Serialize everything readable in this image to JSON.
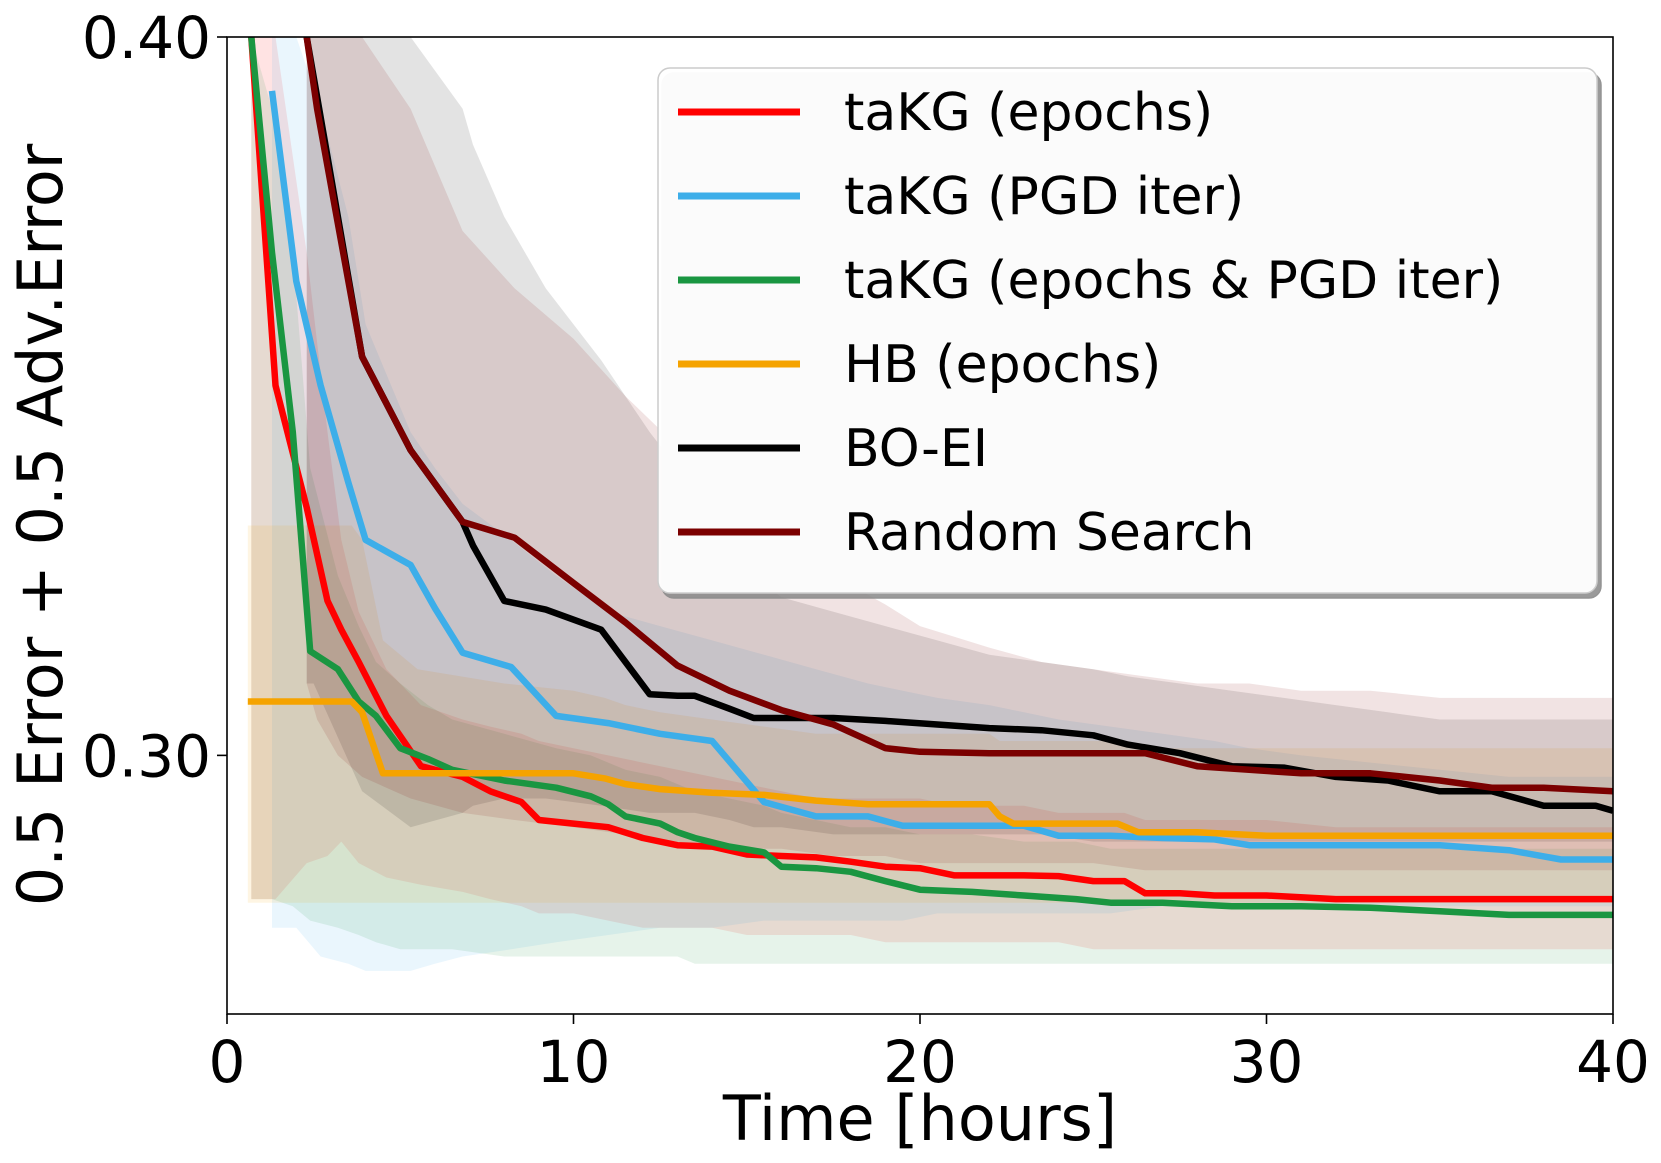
{
  "chart_data": {
    "type": "line",
    "xlabel": "Time [hours]",
    "ylabel": "0.5 Error + 0.5 Adv.Error",
    "xlim": [
      0,
      40
    ],
    "ylim": [
      0.264,
      0.4
    ],
    "xticks": [
      0,
      10,
      20,
      30,
      40
    ],
    "xtick_labels": [
      "0",
      "10",
      "20",
      "30",
      "40"
    ],
    "yticks": [
      0.3,
      0.4
    ],
    "ytick_labels": [
      "0.30",
      "0.40"
    ],
    "legend_position": "top-right",
    "series": [
      {
        "name": "taKG (epochs)",
        "color": "#ff0000",
        "x": [
          0.7,
          1.4,
          2.3,
          2.9,
          3.3,
          3.8,
          4.6,
          5.6,
          6.8,
          7.6,
          8.5,
          9.0,
          10.0,
          11.0,
          12.0,
          13.0,
          14.0,
          15.0,
          16.0,
          17.0,
          18.0,
          19.0,
          20.0,
          21.0,
          22.0,
          23.0,
          24.0,
          25.0,
          25.9,
          26.5,
          27.5,
          28.5,
          30.0,
          32.0,
          35.0,
          38.0,
          40.0
        ],
        "y": [
          0.4,
          0.3515,
          0.3345,
          0.3215,
          0.3175,
          0.313,
          0.3055,
          0.2985,
          0.297,
          0.295,
          0.2935,
          0.291,
          0.2905,
          0.29,
          0.2885,
          0.2875,
          0.2873,
          0.2862,
          0.286,
          0.2858,
          0.2852,
          0.2845,
          0.2843,
          0.2833,
          0.2833,
          0.2833,
          0.2832,
          0.2825,
          0.2825,
          0.2808,
          0.2808,
          0.2805,
          0.2805,
          0.28,
          0.28,
          0.28,
          0.28
        ],
        "lower": [
          0.28,
          0.28,
          0.285,
          0.286,
          0.288,
          0.285,
          0.283,
          0.282,
          0.281,
          0.28,
          0.279,
          0.278,
          0.278,
          0.277,
          0.276,
          0.276,
          0.276,
          0.275,
          0.275,
          0.275,
          0.275,
          0.274,
          0.274,
          0.274,
          0.274,
          0.274,
          0.274,
          0.273,
          0.273,
          0.273,
          0.273,
          0.273,
          0.273,
          0.273,
          0.273,
          0.273,
          0.273
        ],
        "upper": [
          0.4,
          0.4,
          0.37,
          0.345,
          0.33,
          0.32,
          0.312,
          0.307,
          0.305,
          0.304,
          0.303,
          0.302,
          0.301,
          0.3,
          0.299,
          0.298,
          0.297,
          0.296,
          0.295,
          0.294,
          0.294,
          0.294,
          0.294,
          0.293,
          0.293,
          0.293,
          0.292,
          0.292,
          0.292,
          0.291,
          0.291,
          0.291,
          0.291,
          0.29,
          0.29,
          0.29,
          0.29
        ]
      },
      {
        "name": "taKG (PGD iter)",
        "color": "#3daee9",
        "x": [
          1.3,
          2.0,
          2.7,
          3.5,
          4.0,
          5.3,
          6.0,
          6.8,
          8.2,
          9.5,
          11.0,
          12.5,
          14.0,
          15.5,
          17.0,
          18.5,
          19.5,
          20.5,
          22.0,
          23.0,
          24.0,
          25.5,
          27.0,
          28.5,
          29.5,
          31.0,
          33.0,
          35.0,
          37.0,
          38.5,
          40.0
        ],
        "y": [
          0.3925,
          0.366,
          0.3515,
          0.338,
          0.33,
          0.3265,
          0.3205,
          0.3143,
          0.3123,
          0.3055,
          0.3045,
          0.303,
          0.302,
          0.2935,
          0.2915,
          0.2915,
          0.2902,
          0.2902,
          0.2902,
          0.2902,
          0.2888,
          0.2888,
          0.2885,
          0.2883,
          0.2875,
          0.2875,
          0.2875,
          0.2875,
          0.2868,
          0.2855,
          0.2855
        ],
        "lower": [
          0.276,
          0.276,
          0.272,
          0.271,
          0.27,
          0.27,
          0.271,
          0.272,
          0.273,
          0.274,
          0.275,
          0.276,
          0.276,
          0.277,
          0.277,
          0.277,
          0.277,
          0.278,
          0.278,
          0.278,
          0.278,
          0.278,
          0.279,
          0.279,
          0.279,
          0.279,
          0.279,
          0.279,
          0.279,
          0.279,
          0.279
        ],
        "upper": [
          0.4,
          0.4,
          0.39,
          0.375,
          0.36,
          0.345,
          0.34,
          0.335,
          0.33,
          0.325,
          0.32,
          0.318,
          0.316,
          0.314,
          0.312,
          0.31,
          0.309,
          0.308,
          0.307,
          0.306,
          0.305,
          0.304,
          0.303,
          0.302,
          0.301,
          0.3,
          0.299,
          0.298,
          0.297,
          0.297,
          0.297
        ]
      },
      {
        "name": "taKG (epochs & PGD iter)",
        "color": "#1a9641",
        "x": [
          0.7,
          1.3,
          1.9,
          2.4,
          3.2,
          3.8,
          4.3,
          5.0,
          5.8,
          6.5,
          8.0,
          9.5,
          10.5,
          11.0,
          11.5,
          12.5,
          13.0,
          13.5,
          14.5,
          15.5,
          16.0,
          17.0,
          18.0,
          19.0,
          20.0,
          21.5,
          23.0,
          24.5,
          25.5,
          27.0,
          29.0,
          31.0,
          33.0,
          35.0,
          37.0,
          40.0
        ],
        "y": [
          0.4,
          0.37,
          0.345,
          0.3145,
          0.312,
          0.3075,
          0.3055,
          0.301,
          0.2995,
          0.298,
          0.2965,
          0.2955,
          0.2943,
          0.2932,
          0.2915,
          0.2905,
          0.2893,
          0.2885,
          0.2873,
          0.2865,
          0.2845,
          0.2843,
          0.2838,
          0.2825,
          0.2813,
          0.281,
          0.2805,
          0.28,
          0.2795,
          0.2795,
          0.279,
          0.279,
          0.2788,
          0.2783,
          0.2778,
          0.2778
        ],
        "lower": [
          0.28,
          0.28,
          0.279,
          0.277,
          0.276,
          0.275,
          0.274,
          0.273,
          0.273,
          0.273,
          0.272,
          0.272,
          0.272,
          0.272,
          0.272,
          0.272,
          0.272,
          0.271,
          0.271,
          0.271,
          0.271,
          0.271,
          0.271,
          0.271,
          0.271,
          0.271,
          0.271,
          0.271,
          0.271,
          0.271,
          0.271,
          0.271,
          0.271,
          0.271,
          0.271,
          0.271
        ],
        "upper": [
          0.4,
          0.39,
          0.37,
          0.34,
          0.325,
          0.318,
          0.313,
          0.31,
          0.307,
          0.305,
          0.303,
          0.301,
          0.3,
          0.299,
          0.298,
          0.297,
          0.296,
          0.295,
          0.294,
          0.293,
          0.292,
          0.291,
          0.29,
          0.29,
          0.289,
          0.289,
          0.288,
          0.288,
          0.287,
          0.287,
          0.287,
          0.287,
          0.287,
          0.287,
          0.287,
          0.287
        ]
      },
      {
        "name": "HB (epochs)",
        "color": "#f5a300",
        "x": [
          0.6,
          1.0,
          2.0,
          3.0,
          3.6,
          3.9,
          4.5,
          5.5,
          8.0,
          10.0,
          10.9,
          11.5,
          12.5,
          14.0,
          15.5,
          17.0,
          18.5,
          20.0,
          22.0,
          22.3,
          22.7,
          23.5,
          25.0,
          25.7,
          26.3,
          28.0,
          30.0,
          32.0,
          35.0,
          38.0,
          40.0
        ],
        "y": [
          0.3075,
          0.3075,
          0.3075,
          0.3075,
          0.3075,
          0.306,
          0.2975,
          0.2975,
          0.2975,
          0.2975,
          0.2968,
          0.296,
          0.2953,
          0.2948,
          0.2945,
          0.2937,
          0.2932,
          0.2932,
          0.2932,
          0.2915,
          0.2905,
          0.2905,
          0.2905,
          0.2905,
          0.2893,
          0.2893,
          0.2888,
          0.2888,
          0.2888,
          0.2888,
          0.2888
        ],
        "lower": [
          0.2795,
          0.2795,
          0.2795,
          0.2795,
          0.2795,
          0.2795,
          0.2795,
          0.2795,
          0.2795,
          0.2795,
          0.2795,
          0.2795,
          0.2795,
          0.2795,
          0.2795,
          0.2795,
          0.2795,
          0.2795,
          0.2795,
          0.2795,
          0.2795,
          0.2795,
          0.2795,
          0.2795,
          0.2795,
          0.2795,
          0.2795,
          0.2795,
          0.2795,
          0.2795,
          0.2795
        ],
        "upper": [
          0.332,
          0.332,
          0.332,
          0.332,
          0.332,
          0.33,
          0.316,
          0.312,
          0.31,
          0.309,
          0.308,
          0.307,
          0.306,
          0.305,
          0.304,
          0.303,
          0.303,
          0.303,
          0.303,
          0.302,
          0.302,
          0.302,
          0.302,
          0.302,
          0.301,
          0.301,
          0.301,
          0.301,
          0.301,
          0.301,
          0.301
        ]
      },
      {
        "name": "BO-EI",
        "color": "#000000",
        "x": [
          2.3,
          2.5,
          3.9,
          5.3,
          6.8,
          7.1,
          8.0,
          9.2,
          10.8,
          12.2,
          13.0,
          13.5,
          14.5,
          15.2,
          16.0,
          17.5,
          19.0,
          20.5,
          22.0,
          23.5,
          25.0,
          26.0,
          27.5,
          29.0,
          30.5,
          32.0,
          33.5,
          35.0,
          36.5,
          38.0,
          39.5,
          40.0
        ],
        "y": [
          0.4,
          0.3945,
          0.3555,
          0.3425,
          0.3325,
          0.3292,
          0.3215,
          0.3203,
          0.3175,
          0.3085,
          0.3083,
          0.3083,
          0.3065,
          0.3052,
          0.3052,
          0.3052,
          0.3048,
          0.3043,
          0.3038,
          0.3035,
          0.3028,
          0.3015,
          0.3003,
          0.2985,
          0.2983,
          0.297,
          0.2965,
          0.295,
          0.295,
          0.293,
          0.293,
          0.2923
        ],
        "lower": [
          0.31,
          0.31,
          0.295,
          0.29,
          0.292,
          0.293,
          0.294,
          0.294,
          0.293,
          0.292,
          0.292,
          0.292,
          0.291,
          0.29,
          0.29,
          0.289,
          0.289,
          0.289,
          0.289,
          0.289,
          0.288,
          0.288,
          0.288,
          0.288,
          0.288,
          0.288,
          0.288,
          0.288,
          0.288,
          0.288,
          0.288,
          0.288
        ],
        "upper": [
          0.4,
          0.4,
          0.4,
          0.4,
          0.39,
          0.385,
          0.375,
          0.365,
          0.355,
          0.345,
          0.34,
          0.335,
          0.33,
          0.325,
          0.322,
          0.32,
          0.318,
          0.316,
          0.314,
          0.313,
          0.312,
          0.311,
          0.31,
          0.309,
          0.308,
          0.307,
          0.306,
          0.305,
          0.305,
          0.305,
          0.305,
          0.305
        ]
      },
      {
        "name": "Random Search",
        "color": "#7b0000",
        "x": [
          2.3,
          2.6,
          3.2,
          3.9,
          5.3,
          6.8,
          8.3,
          10.0,
          11.5,
          13.0,
          14.5,
          16.0,
          17.5,
          19.0,
          20.0,
          22.0,
          23.5,
          25.0,
          26.5,
          28.0,
          29.5,
          31.0,
          33.0,
          35.0,
          36.5,
          38.0,
          40.0
        ],
        "y": [
          0.4,
          0.39,
          0.374,
          0.3555,
          0.3425,
          0.3325,
          0.3303,
          0.324,
          0.3185,
          0.3125,
          0.309,
          0.3063,
          0.3043,
          0.301,
          0.3005,
          0.3003,
          0.3003,
          0.3003,
          0.3003,
          0.2985,
          0.298,
          0.2975,
          0.2975,
          0.2965,
          0.2955,
          0.2955,
          0.295
        ],
        "lower": [
          0.31,
          0.305,
          0.3,
          0.297,
          0.294,
          0.292,
          0.291,
          0.29,
          0.289,
          0.288,
          0.287,
          0.287,
          0.286,
          0.286,
          0.285,
          0.285,
          0.285,
          0.285,
          0.284,
          0.284,
          0.284,
          0.284,
          0.284,
          0.284,
          0.284,
          0.284,
          0.284
        ],
        "upper": [
          0.4,
          0.4,
          0.4,
          0.4,
          0.39,
          0.373,
          0.365,
          0.358,
          0.35,
          0.343,
          0.336,
          0.33,
          0.325,
          0.321,
          0.318,
          0.315,
          0.313,
          0.312,
          0.311,
          0.31,
          0.31,
          0.309,
          0.309,
          0.308,
          0.308,
          0.308,
          0.308
        ]
      }
    ]
  }
}
